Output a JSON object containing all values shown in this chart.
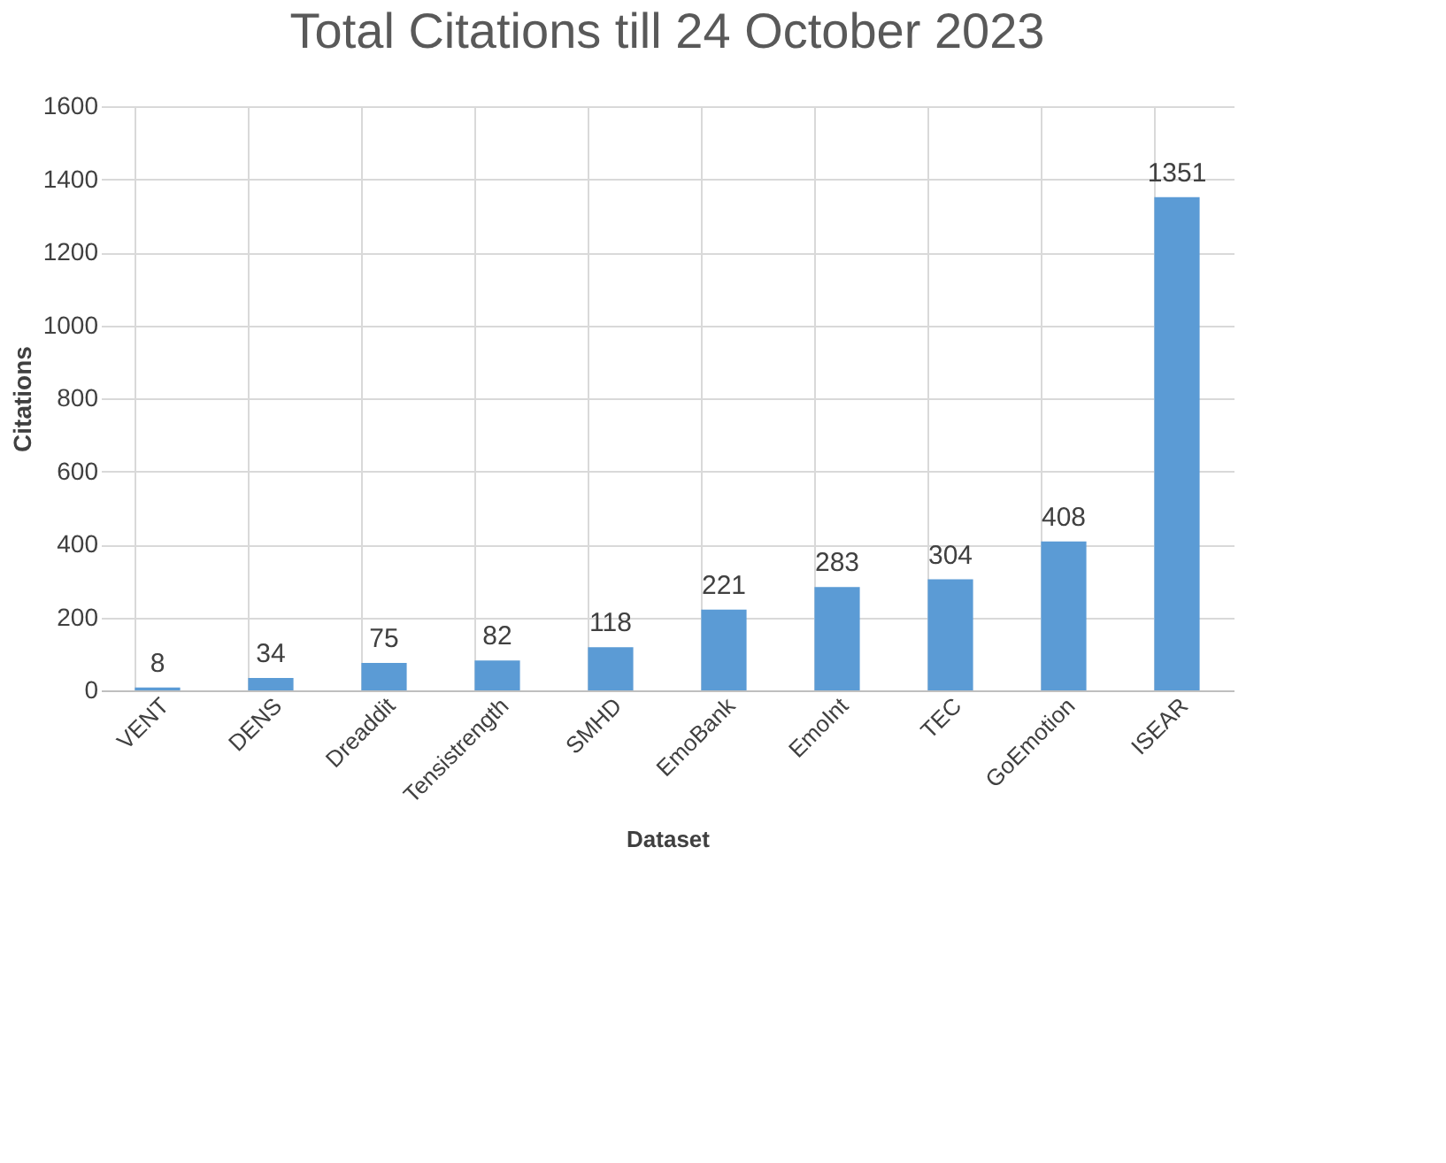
{
  "chart_data": {
    "type": "bar",
    "title": "Total Citations till 24 October 2023",
    "xlabel": "Dataset",
    "ylabel": "Citations",
    "categories": [
      "VENT",
      "DENS",
      "Dreaddit",
      "Tensistrength",
      "SMHD",
      "EmoBank",
      "EmoInt",
      "TEC",
      "GoEmotion",
      "ISEAR"
    ],
    "values": [
      8,
      34,
      75,
      82,
      118,
      221,
      283,
      304,
      408,
      1351
    ],
    "color": "#5b9bd5",
    "ylim": [
      0,
      1600
    ],
    "yticks": [
      0,
      200,
      400,
      600,
      800,
      1000,
      1200,
      1400,
      1600
    ],
    "grid": true,
    "data_labels": true
  }
}
